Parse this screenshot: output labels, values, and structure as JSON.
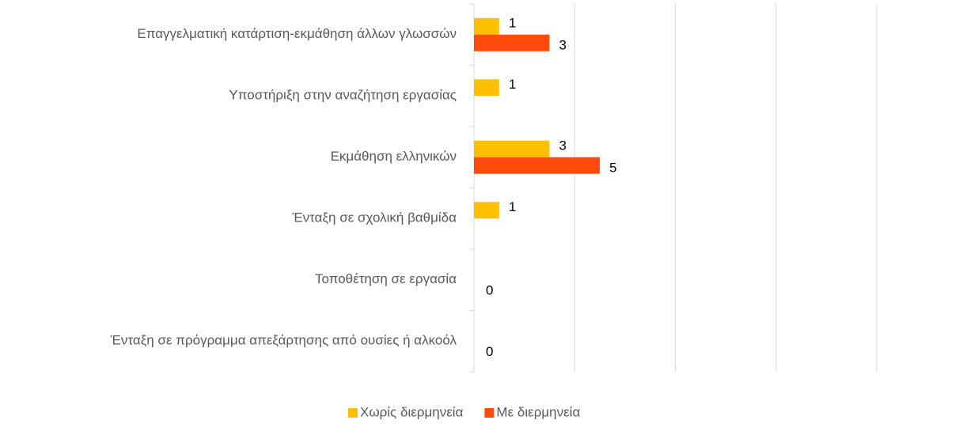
{
  "chart_data": {
    "type": "bar",
    "orientation": "horizontal",
    "categories": [
      "Επαγγελματική κατάρτιση-εκμάθηση άλλων γλωσσών",
      "Υποστήριξη στην αναζήτηση εργασίας",
      "Εκμάθηση ελληνικών",
      "Ένταξη σε σχολική βαθμίδα",
      "Τοποθέτηση σε εργασία",
      "Ένταξη σε πρόγραμμα απεξάρτησης από ουσίες ή αλκοόλ"
    ],
    "series": [
      {
        "name": "Χωρίς διερμηνεία",
        "color": "#ffc000",
        "values": [
          1,
          1,
          3,
          1,
          null,
          null
        ]
      },
      {
        "name": "Με διερμηνεία",
        "color": "#fc4a0a",
        "values": [
          3,
          null,
          5,
          null,
          0,
          0
        ]
      }
    ],
    "xlim": [
      0,
      16
    ],
    "xticks": [
      0,
      4,
      8,
      12,
      16
    ],
    "grid": true,
    "legend": "bottom"
  }
}
